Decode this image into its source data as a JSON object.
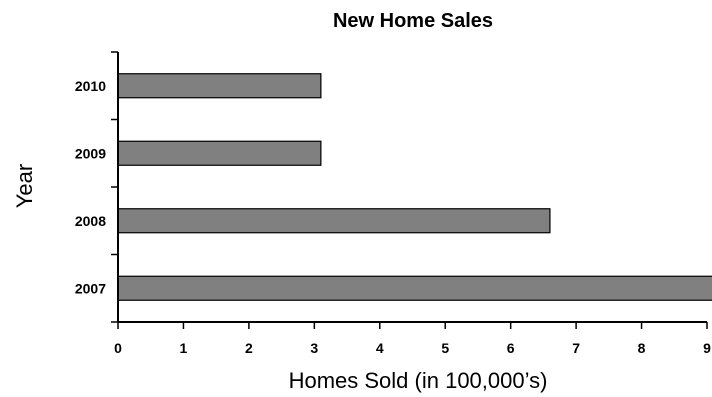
{
  "chart_data": {
    "type": "bar",
    "orientation": "horizontal",
    "title": "New Home Sales",
    "xlabel": "Homes Sold (in 100,000’s)",
    "ylabel": "Year",
    "categories": [
      "2010",
      "2009",
      "2008",
      "2007"
    ],
    "values": [
      3.1,
      3.1,
      6.6,
      9.1
    ],
    "xlim": [
      0,
      9
    ],
    "x_ticks": [
      "0",
      "1",
      "2",
      "3",
      "4",
      "5",
      "6",
      "7",
      "8",
      "9"
    ],
    "grid": false,
    "legend": "none",
    "bar_color": "#808080",
    "bar_edge_color": "#000000"
  }
}
